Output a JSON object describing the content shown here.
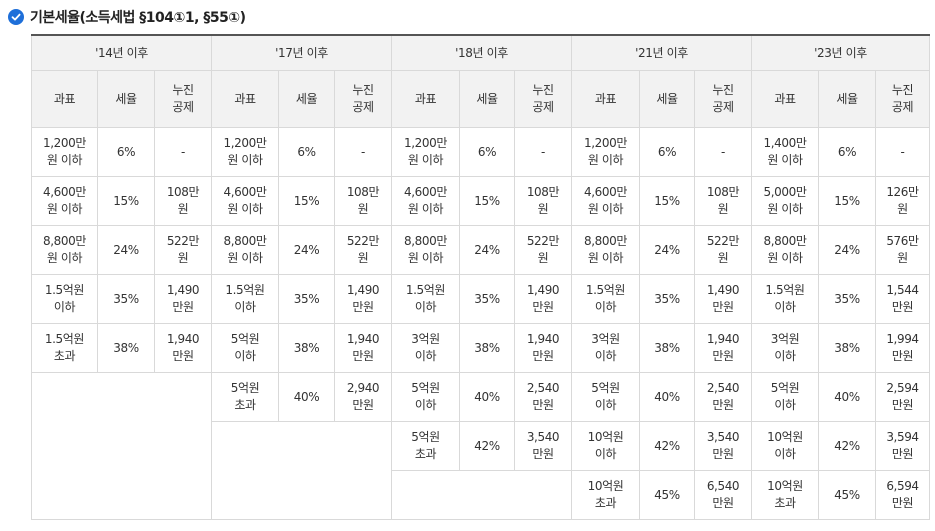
{
  "heading": {
    "title": "기본세율(소득세법 §104①1, §55①)",
    "icon": "check-circle-icon",
    "icon_color": "#1e6fd9"
  },
  "table": {
    "periods": [
      "'14년 이후",
      "'17년 이후",
      "'18년 이후",
      "'21년 이후",
      "'23년 이후"
    ],
    "subheaders": [
      "과표",
      "세율",
      "누진\n공제"
    ],
    "columns": [
      [
        [
          "1,200만\n원 이하",
          "6%",
          "-"
        ],
        [
          "4,600만\n원 이하",
          "15%",
          "108만\n원"
        ],
        [
          "8,800만\n원 이하",
          "24%",
          "522만\n원"
        ],
        [
          "1.5억원\n이하",
          "35%",
          "1,490\n만원"
        ],
        [
          "1.5억원\n초과",
          "38%",
          "1,940\n만원"
        ]
      ],
      [
        [
          "1,200만\n원 이하",
          "6%",
          "-"
        ],
        [
          "4,600만\n원 이하",
          "15%",
          "108만\n원"
        ],
        [
          "8,800만\n원 이하",
          "24%",
          "522만\n원"
        ],
        [
          "1.5억원\n이하",
          "35%",
          "1,490\n만원"
        ],
        [
          "5억원\n이하",
          "38%",
          "1,940\n만원"
        ],
        [
          "5억원\n초과",
          "40%",
          "2,940\n만원"
        ]
      ],
      [
        [
          "1,200만\n원 이하",
          "6%",
          "-"
        ],
        [
          "4,600만\n원 이하",
          "15%",
          "108만\n원"
        ],
        [
          "8,800만\n원 이하",
          "24%",
          "522만\n원"
        ],
        [
          "1.5억원\n이하",
          "35%",
          "1,490\n만원"
        ],
        [
          "3억원\n이하",
          "38%",
          "1,940\n만원"
        ],
        [
          "5억원\n이하",
          "40%",
          "2,540\n만원"
        ],
        [
          "5억원\n초과",
          "42%",
          "3,540\n만원"
        ]
      ],
      [
        [
          "1,200만\n원 이하",
          "6%",
          "-"
        ],
        [
          "4,600만\n원 이하",
          "15%",
          "108만\n원"
        ],
        [
          "8,800만\n원 이하",
          "24%",
          "522만\n원"
        ],
        [
          "1.5억원\n이하",
          "35%",
          "1,490\n만원"
        ],
        [
          "3억원\n이하",
          "38%",
          "1,940\n만원"
        ],
        [
          "5억원\n이하",
          "40%",
          "2,540\n만원"
        ],
        [
          "10억원\n이하",
          "42%",
          "3,540\n만원"
        ],
        [
          "10억원\n초과",
          "45%",
          "6,540\n만원"
        ]
      ],
      [
        [
          "1,400만\n원 이하",
          "6%",
          "-"
        ],
        [
          "5,000만\n원 이하",
          "15%",
          "126만\n원"
        ],
        [
          "8,800만\n원 이하",
          "24%",
          "576만\n원"
        ],
        [
          "1.5억원\n이하",
          "35%",
          "1,544\n만원"
        ],
        [
          "3억원\n이하",
          "38%",
          "1,994\n만원"
        ],
        [
          "5억원\n이하",
          "40%",
          "2,594\n만원"
        ],
        [
          "10억원\n이하",
          "42%",
          "3,594\n만원"
        ],
        [
          "10억원\n초과",
          "45%",
          "6,594\n만원"
        ]
      ]
    ]
  }
}
